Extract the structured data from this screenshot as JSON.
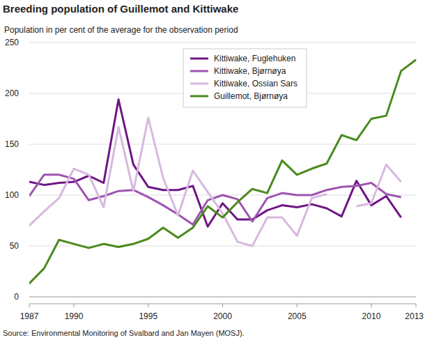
{
  "chart_data": {
    "type": "line",
    "title": "Breeding population of Guillemot and Kittiwake",
    "subtitle": "Population in per cent of the average for the observation period",
    "source": "Source: Environmental Monitoring of Svalbard and Jan Mayen (MOSJ).",
    "x": [
      1987,
      1988,
      1989,
      1990,
      1991,
      1992,
      1993,
      1994,
      1995,
      1996,
      1997,
      1998,
      1999,
      2000,
      2001,
      2002,
      2003,
      2004,
      2005,
      2006,
      2007,
      2008,
      2009,
      2010,
      2011,
      2012,
      2013
    ],
    "xlim": [
      1987,
      2013
    ],
    "xticks": [
      1987,
      1990,
      1995,
      2000,
      2005,
      2010,
      2013
    ],
    "ylim": [
      0,
      250
    ],
    "yticks": [
      0,
      50,
      100,
      150,
      200,
      250
    ],
    "grid": true,
    "legend": "top-right",
    "series": [
      {
        "name": "Kittiwake, Fuglehuken",
        "color": "#6d1683",
        "values": [
          113,
          110,
          112,
          113,
          119,
          112,
          194,
          130,
          108,
          105,
          105,
          109,
          69,
          92,
          76,
          76,
          85,
          90,
          88,
          91,
          87,
          79,
          114,
          90,
          99,
          78,
          null
        ]
      },
      {
        "name": "Kittiwake, Bjørnøya",
        "color": "#9e55b0",
        "values": [
          99,
          120,
          120,
          116,
          95,
          99,
          104,
          105,
          98,
          90,
          81,
          71,
          95,
          100,
          96,
          74,
          97,
          102,
          100,
          100,
          105,
          108,
          109,
          112,
          101,
          98,
          null
        ]
      },
      {
        "name": "Kittiwake, Ossian Sars",
        "color": "#d7b8df",
        "values": [
          70,
          84,
          97,
          126,
          120,
          88,
          167,
          104,
          176,
          117,
          80,
          124,
          103,
          82,
          54,
          50,
          78,
          78,
          60,
          97,
          101,
          null,
          89,
          92,
          130,
          113,
          null
        ]
      },
      {
        "name": "Guillemot, Bjørnøya",
        "color": "#4a8a1c",
        "values": [
          13,
          28,
          56,
          52,
          48,
          52,
          49,
          52,
          57,
          68,
          58,
          68,
          89,
          78,
          93,
          106,
          102,
          134,
          120,
          126,
          131,
          159,
          154,
          175,
          178,
          222,
          233
        ]
      }
    ]
  }
}
